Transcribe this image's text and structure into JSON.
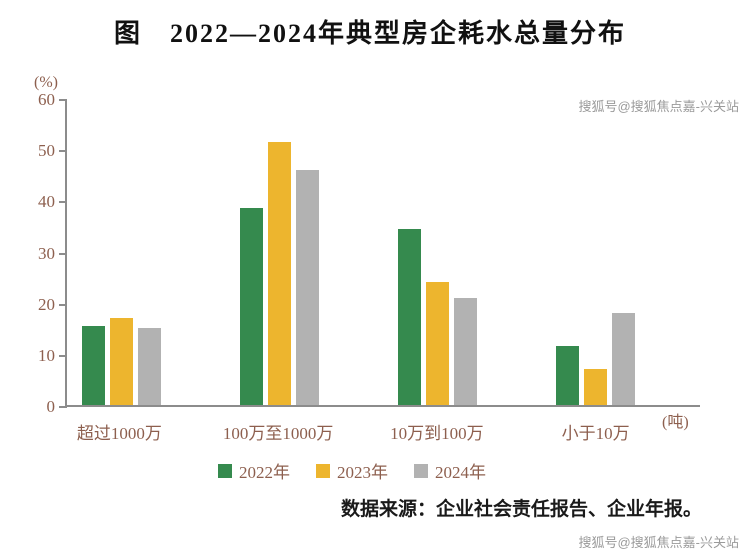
{
  "watermarks": {
    "top": "搜狐号@搜狐焦点嘉-兴关站",
    "bottom": "搜狐号@搜狐焦点嘉-兴关站"
  },
  "source_note": "数据来源：企业社会责任报告、企业年报。",
  "colors": {
    "text": "#8d5f4e",
    "axis": "#8c8c8c",
    "title": "#111111",
    "source": "#1a1a1a",
    "watermark": "#9b9b9b"
  },
  "chart_data": {
    "type": "bar",
    "title": "图　2022—2024年典型房企耗水总量分布",
    "y_unit_label": "(%)",
    "x_unit_label": "(吨)",
    "categories": [
      "超过1000万",
      "100万至1000万",
      "10万到100万",
      "小于10万"
    ],
    "series": [
      {
        "name": "2022年",
        "color": "#358a4e",
        "values": [
          15.5,
          38.5,
          34.5,
          11.5
        ]
      },
      {
        "name": "2023年",
        "color": "#edb52e",
        "values": [
          17,
          51.5,
          24,
          7
        ]
      },
      {
        "name": "2024年",
        "color": "#b2b2b2",
        "values": [
          15,
          46,
          21,
          18
        ]
      }
    ],
    "ylim": [
      0,
      60
    ],
    "yticks": [
      0,
      10,
      20,
      30,
      40,
      50,
      60
    ],
    "grid": false,
    "legend_position": "bottom"
  }
}
